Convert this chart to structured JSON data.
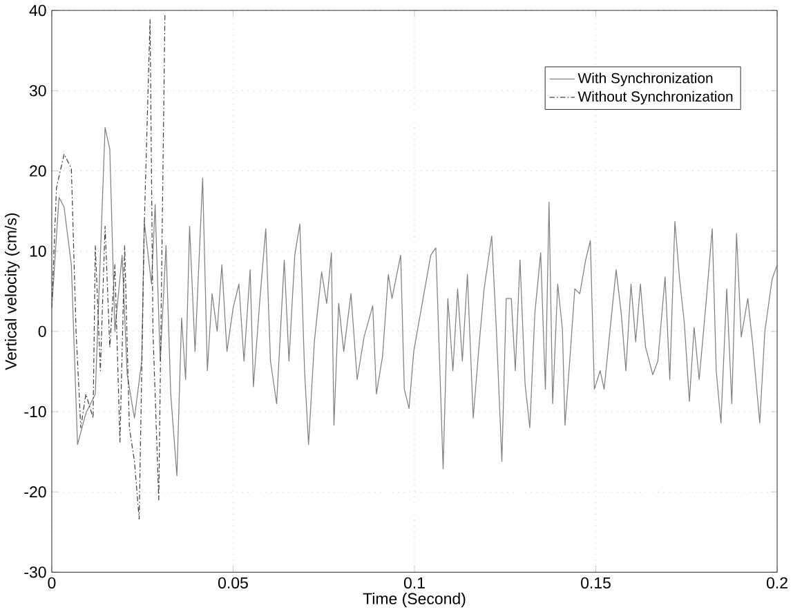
{
  "chart_data": {
    "type": "line",
    "xlabel": "Time (Second)",
    "ylabel": "Vertical velocity (cm/s)",
    "xlim": [
      0,
      0.2
    ],
    "ylim": [
      -30,
      40
    ],
    "xticks": [
      0,
      0.05,
      0.1,
      0.15,
      0.2
    ],
    "yticks": [
      -30,
      -20,
      -10,
      0,
      10,
      20,
      30,
      40
    ],
    "grid": true,
    "legend": "top right",
    "series": [
      {
        "name": "With Synchronization",
        "color": "#808080",
        "line_style": "solid",
        "x": [
          0,
          0.002,
          0.0034,
          0.0054,
          0.0071,
          0.0094,
          0.012,
          0.0147,
          0.016,
          0.0174,
          0.0194,
          0.0208,
          0.0228,
          0.0248,
          0.0255,
          0.0275,
          0.0285,
          0.0299,
          0.0315,
          0.0328,
          0.0345,
          0.0358,
          0.0369,
          0.038,
          0.0395,
          0.0416,
          0.0429,
          0.0442,
          0.0456,
          0.0469,
          0.0483,
          0.05,
          0.0516,
          0.053,
          0.0547,
          0.0556,
          0.0574,
          0.059,
          0.0603,
          0.062,
          0.0641,
          0.0654,
          0.067,
          0.0684,
          0.0697,
          0.0708,
          0.0724,
          0.0744,
          0.0758,
          0.0771,
          0.0778,
          0.0791,
          0.0805,
          0.0825,
          0.0842,
          0.0861,
          0.0885,
          0.0895,
          0.0912,
          0.0928,
          0.0938,
          0.0962,
          0.0972,
          0.0985,
          0.0998,
          0.1019,
          0.1045,
          0.1059,
          0.1079,
          0.1092,
          0.1106,
          0.1119,
          0.1132,
          0.1146,
          0.1162,
          0.1179,
          0.1192,
          0.1213,
          0.1226,
          0.1241,
          0.1253,
          0.1267,
          0.1278,
          0.1291,
          0.1305,
          0.1318,
          0.1332,
          0.1348,
          0.1361,
          0.1371,
          0.1381,
          0.1395,
          0.1408,
          0.1415,
          0.1429,
          0.1442,
          0.1456,
          0.1472,
          0.1485,
          0.1496,
          0.1512,
          0.1523,
          0.1536,
          0.1556,
          0.157,
          0.1583,
          0.1597,
          0.161,
          0.1623,
          0.1637,
          0.1657,
          0.1671,
          0.1691,
          0.1704,
          0.1718,
          0.1731,
          0.1744,
          0.1758,
          0.1771,
          0.1785,
          0.1805,
          0.1821,
          0.1832,
          0.1845,
          0.1861,
          0.1875,
          0.1888,
          0.1901,
          0.1919,
          0.1932,
          0.1952,
          0.1966,
          0.1986,
          0.2
        ],
        "values": [
          2.9,
          16.7,
          15.5,
          8.3,
          -14.1,
          -10.2,
          -7.8,
          25.4,
          22.7,
          0,
          9.5,
          -5.4,
          -10.8,
          -3.7,
          13.7,
          5.9,
          15.8,
          -3.7,
          10.7,
          -7.8,
          -18,
          1.7,
          -6,
          13.1,
          -2.5,
          19.1,
          -4.9,
          4.7,
          0,
          8.3,
          -2.5,
          2.9,
          5.9,
          -3.7,
          7.7,
          -6.9,
          4.1,
          12.8,
          -3.7,
          -9,
          8.9,
          -3.7,
          9.5,
          13.4,
          -4.9,
          -14.1,
          -1.3,
          7.4,
          3.5,
          9.8,
          -11.7,
          3.5,
          -2.5,
          4.7,
          -6,
          -0.7,
          3.2,
          -7.8,
          -3.1,
          7.1,
          4.1,
          9.5,
          -7.2,
          -9.6,
          -2.5,
          2.9,
          9.5,
          10.4,
          -17.1,
          4.1,
          -4.9,
          5.3,
          -3.7,
          7.1,
          -10.8,
          -1.3,
          5.3,
          11.9,
          0,
          -16.2,
          4.1,
          4.1,
          -4.9,
          8.9,
          -6.6,
          -12,
          2.3,
          9.8,
          -7.2,
          16.1,
          -9,
          5.9,
          0.2,
          -11.7,
          -3.1,
          5.3,
          4.7,
          8.9,
          11.3,
          -7.2,
          -4.9,
          -7.2,
          -1.3,
          7.7,
          2.3,
          -4.9,
          5.9,
          -1.3,
          5.9,
          -1.9,
          -5.4,
          -3.7,
          6.8,
          -6,
          13.7,
          6.5,
          1.1,
          -8.7,
          0.5,
          -6,
          4.1,
          12.8,
          -4.9,
          -11.4,
          5.3,
          -9,
          12.2,
          -0.7,
          4.1,
          -1.3,
          -11.4,
          0,
          6.5,
          8.3
        ]
      },
      {
        "name": "Without Synchronization",
        "color": "#404040",
        "line_style": "dashdot",
        "x": [
          0,
          0.0013,
          0.0034,
          0.0054,
          0.0067,
          0.008,
          0.0094,
          0.0114,
          0.012,
          0.0134,
          0.0147,
          0.016,
          0.0174,
          0.0188,
          0.0201,
          0.0214,
          0.0228,
          0.0241,
          0.0255,
          0.0271,
          0.0279,
          0.0295,
          0.0312
        ],
        "values": [
          3,
          17.9,
          22.1,
          20.3,
          0,
          -12,
          -7.8,
          -10.8,
          10.7,
          -4.9,
          13.1,
          -2,
          8.3,
          -13.8,
          10.7,
          -12,
          -16.2,
          -23.4,
          13.1,
          38.9,
          0,
          -21,
          39.5
        ]
      }
    ]
  }
}
